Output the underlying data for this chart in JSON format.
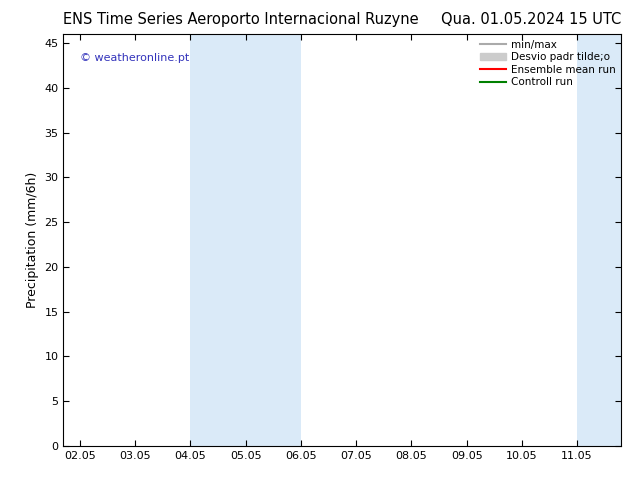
{
  "title": "ENS Time Series Aeroporto Internacional Ruzyne",
  "title_right": "Qua. 01.05.2024 15 UTC",
  "ylabel": "Precipitation (mm/6h)",
  "watermark": "© weatheronline.pt",
  "watermark_color": "#3333bb",
  "xlim": [
    -0.3,
    9.8
  ],
  "ylim": [
    0,
    46
  ],
  "yticks": [
    0,
    5,
    10,
    15,
    20,
    25,
    30,
    35,
    40,
    45
  ],
  "xtick_labels": [
    "02.05",
    "03.05",
    "04.05",
    "05.05",
    "06.05",
    "07.05",
    "08.05",
    "09.05",
    "10.05",
    "11.05"
  ],
  "xtick_positions": [
    0,
    1,
    2,
    3,
    4,
    5,
    6,
    7,
    8,
    9
  ],
  "shaded_bands": [
    {
      "xmin": 2.0,
      "xmax": 4.0
    },
    {
      "xmin": 9.0,
      "xmax": 9.8
    }
  ],
  "shade_color": "#daeaf8",
  "background_color": "#ffffff",
  "legend_entries": [
    {
      "label": "min/max",
      "color": "#aaaaaa",
      "lw": 1.5,
      "type": "line"
    },
    {
      "label": "Desvio padr tilde;o",
      "color": "#cccccc",
      "lw": 6,
      "type": "fill"
    },
    {
      "label": "Ensemble mean run",
      "color": "#ff0000",
      "lw": 1.5,
      "type": "line"
    },
    {
      "label": "Controll run",
      "color": "#008000",
      "lw": 1.5,
      "type": "line"
    }
  ],
  "title_fontsize": 10.5,
  "tick_fontsize": 8,
  "ylabel_fontsize": 9
}
